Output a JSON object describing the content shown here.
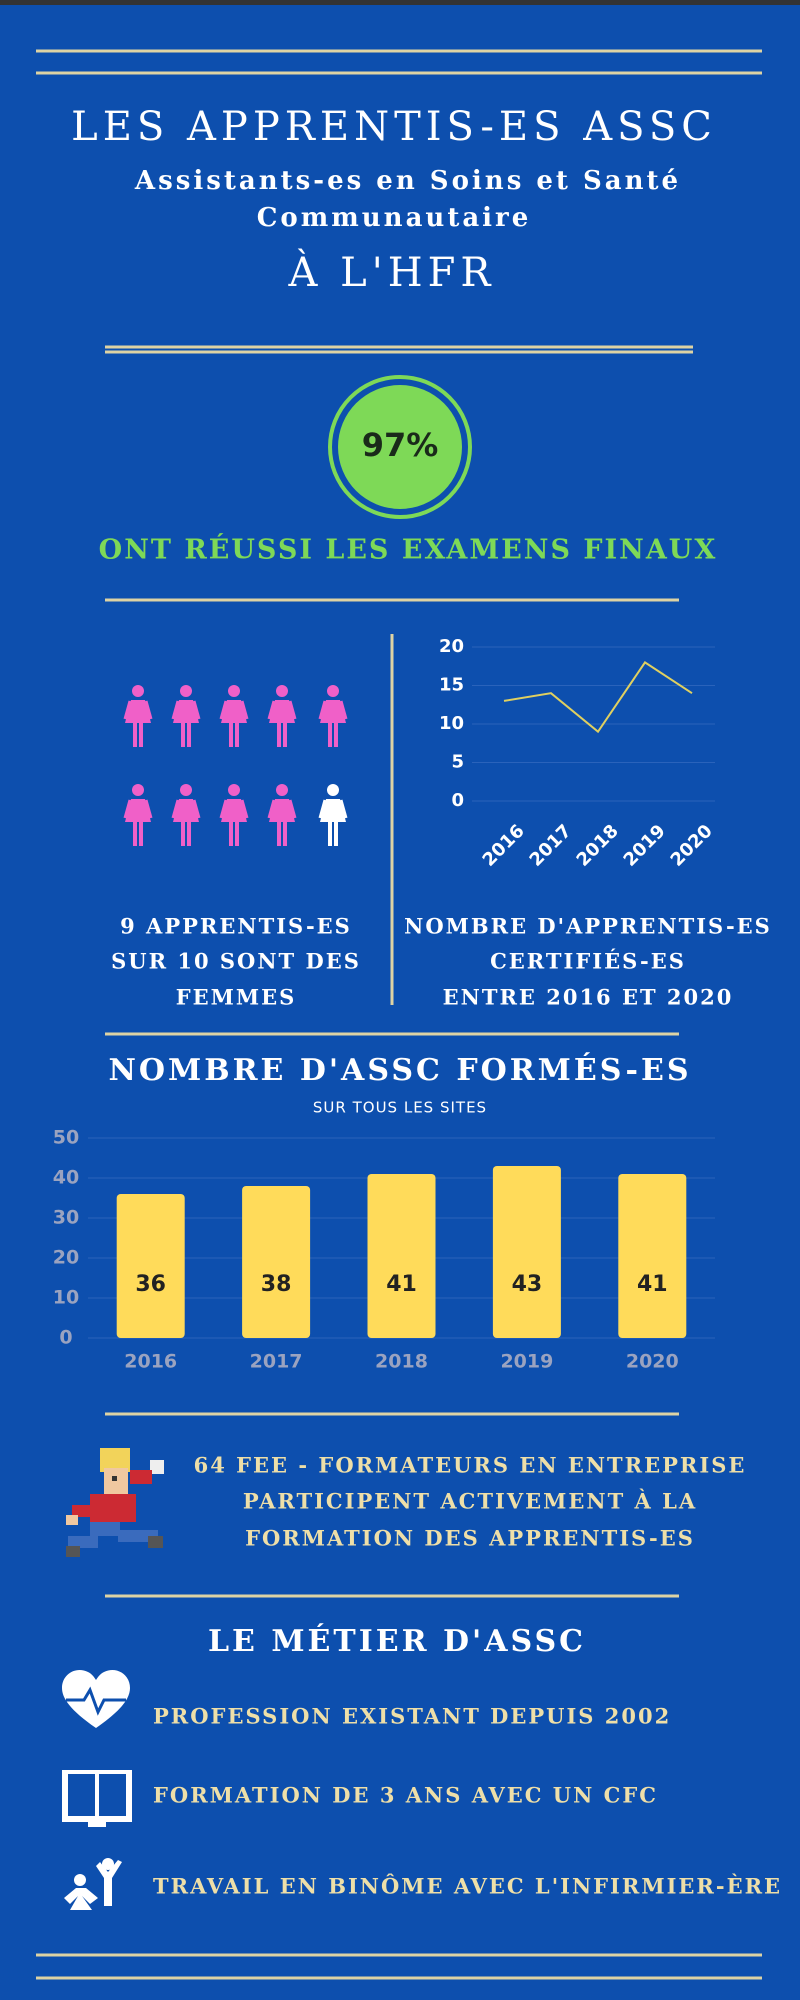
{
  "header": {
    "title": "LES APPRENTIS-ES ASSC",
    "subtitle_line1": "Assistants-es en Soins et Santé",
    "subtitle_line2": "Communautaire",
    "location": "À L'HFR"
  },
  "success": {
    "percent": "97%",
    "caption": "ONT RÉUSSI LES EXAMENS FINAUX"
  },
  "gender": {
    "lines": [
      "9 APPRENTIS-ES",
      "SUR 10 SONT DES",
      "FEMMES"
    ]
  },
  "certified": {
    "lines": [
      "NOMBRE D'APPRENTIS-ES",
      "CERTIFIÉS-ES",
      "ENTRE 2016 ET 2020"
    ]
  },
  "chart_data": [
    {
      "type": "line",
      "categories": [
        "2016",
        "2017",
        "2018",
        "2019",
        "2020"
      ],
      "values": [
        13,
        14,
        9,
        18,
        14
      ],
      "color": "#e0d060",
      "ylim": [
        0,
        20
      ],
      "yticks": [
        0,
        5,
        10,
        15,
        20
      ],
      "grid": true
    },
    {
      "type": "bar",
      "title": "NOMBRE D'ASSC FORMÉS-ES",
      "subtitle": "SUR TOUS LES SITES",
      "categories": [
        "2016",
        "2017",
        "2018",
        "2019",
        "2020"
      ],
      "values": [
        36,
        38,
        41,
        43,
        41
      ],
      "color": "#ffdb5a",
      "ylim": [
        0,
        50
      ],
      "yticks": [
        0,
        10,
        20,
        30,
        40,
        50
      ],
      "grid": true
    }
  ],
  "trainers": {
    "lines": [
      "64 FEE - FORMATEURS EN ENTREPRISE",
      "PARTICIPENT ACTIVEMENT À LA",
      "FORMATION DES APPRENTIS-ES"
    ]
  },
  "job": {
    "title": "LE MÉTIER D'ASSC",
    "items": [
      "PROFESSION EXISTANT DEPUIS 2002",
      "FORMATION DE 3 ANS AVEC UN CFC",
      "TRAVAIL EN BINÔME AVEC L'INFIRMIER-ÈRE"
    ]
  }
}
